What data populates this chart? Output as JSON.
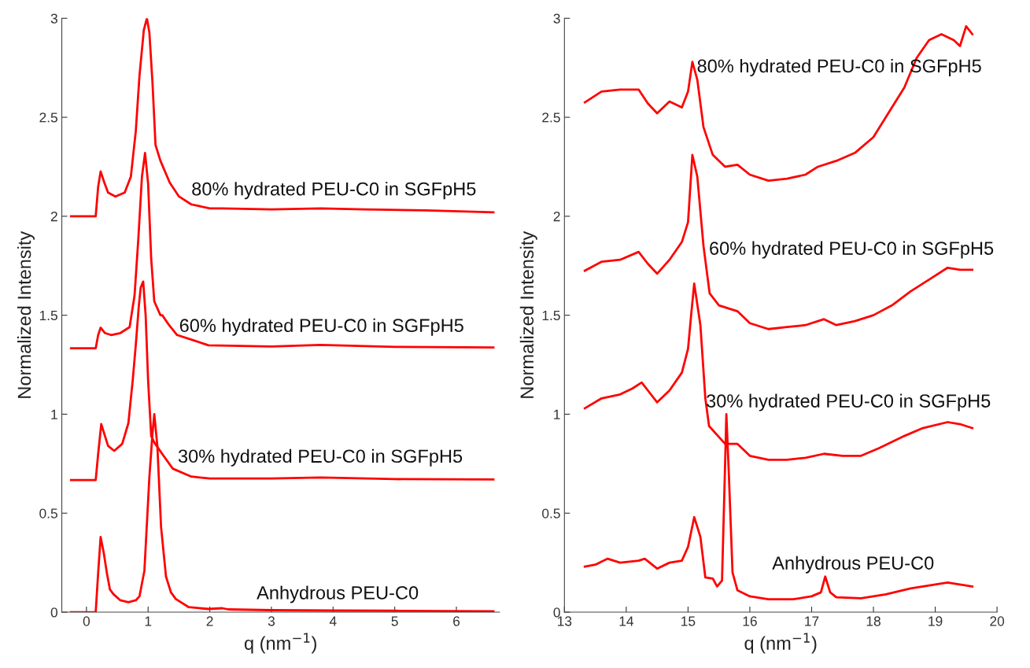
{
  "chart_data": [
    {
      "type": "line",
      "xlabel": "q (nm$^{−1}$)",
      "ylabel": "Normalized Intensity",
      "xlim": [
        -0.4,
        6.7
      ],
      "xticks": [
        0,
        1,
        2,
        3,
        4,
        5,
        6
      ],
      "ylim": [
        0,
        3
      ],
      "yticks": [
        0,
        0.5,
        1,
        1.5,
        2,
        2.5,
        3
      ],
      "grid": false,
      "marker": "none",
      "line_style": "solid",
      "series": [
        {
          "name": "Anhydrous PEU-C0",
          "color": "#ff0000",
          "x": [
            -0.25,
            0.15,
            0.19,
            0.23,
            0.28,
            0.33,
            0.38,
            0.44,
            0.55,
            0.68,
            0.8,
            0.86,
            0.94,
            1.02,
            1.07,
            1.1,
            1.15,
            1.21,
            1.29,
            1.37,
            1.45,
            1.66,
            1.98,
            2.2,
            2.3,
            3,
            4,
            5,
            6.6
          ],
          "values": [
            0,
            0,
            0.2,
            0.38,
            0.3,
            0.2,
            0.115,
            0.09,
            0.06,
            0.05,
            0.06,
            0.08,
            0.21,
            0.68,
            0.9,
            1.0,
            0.84,
            0.43,
            0.18,
            0.1,
            0.066,
            0.025,
            0.016,
            0.02,
            0.014,
            0.01,
            0.008,
            0.007,
            0.005
          ]
        },
        {
          "name": "30% hydrated PEU-C0 in SGFpH5",
          "color": "#ff0000",
          "x": [
            -0.25,
            0.15,
            0.19,
            0.24,
            0.29,
            0.35,
            0.45,
            0.58,
            0.68,
            0.75,
            0.8,
            0.85,
            0.88,
            0.92,
            0.96,
            1.0,
            1.05,
            1.1,
            1.25,
            1.4,
            1.7,
            2.0,
            3,
            3.8,
            5,
            6.6
          ],
          "values": [
            0.667,
            0.667,
            0.8,
            0.95,
            0.9,
            0.84,
            0.815,
            0.85,
            0.955,
            1.17,
            1.35,
            1.55,
            1.64,
            1.67,
            1.5,
            1.17,
            0.89,
            0.857,
            0.79,
            0.725,
            0.685,
            0.675,
            0.675,
            0.68,
            0.672,
            0.67
          ]
        },
        {
          "name": "60% hydrated PEU-C0 in SGFpH5",
          "color": "#ff0000",
          "x": [
            -0.25,
            0.15,
            0.19,
            0.23,
            0.3,
            0.4,
            0.55,
            0.7,
            0.78,
            0.84,
            0.9,
            0.95,
            1.0,
            1.05,
            1.1,
            1.2,
            1.23,
            1.34,
            1.47,
            1.77,
            1.98,
            3,
            3.8,
            5,
            6.6
          ],
          "values": [
            1.333,
            1.333,
            1.4,
            1.437,
            1.41,
            1.4,
            1.41,
            1.44,
            1.6,
            1.88,
            2.2,
            2.32,
            2.165,
            1.785,
            1.57,
            1.5,
            1.5,
            1.45,
            1.4,
            1.37,
            1.348,
            1.342,
            1.35,
            1.34,
            1.337
          ]
        },
        {
          "name": "80% hydrated PEU-C0 in SGFpH5",
          "color": "#ff0000",
          "x": [
            -0.25,
            0.15,
            0.19,
            0.23,
            0.29,
            0.35,
            0.47,
            0.62,
            0.72,
            0.8,
            0.86,
            0.93,
            0.98,
            1.02,
            1.07,
            1.12,
            1.2,
            1.35,
            1.5,
            1.7,
            2.0,
            2.2,
            3.0,
            3.8,
            4.5,
            5.5,
            6.6
          ],
          "values": [
            2.0,
            2.0,
            2.15,
            2.226,
            2.17,
            2.12,
            2.1,
            2.12,
            2.2,
            2.43,
            2.71,
            2.94,
            3.0,
            2.93,
            2.68,
            2.36,
            2.28,
            2.17,
            2.1,
            2.06,
            2.04,
            2.04,
            2.035,
            2.04,
            2.035,
            2.03,
            2.02
          ]
        }
      ]
    },
    {
      "type": "line",
      "xlabel": "q (nm$^{−1}$)",
      "ylabel": "Normalized Intensity",
      "xlim": [
        13,
        20
      ],
      "xticks": [
        13,
        14,
        15,
        16,
        17,
        18,
        19,
        20
      ],
      "ylim": [
        0,
        3
      ],
      "yticks": [
        0,
        0.5,
        1,
        1.5,
        2,
        2.5,
        3
      ],
      "grid": false,
      "marker": "none",
      "line_style": "solid",
      "series": [
        {
          "name": "Anhydrous PEU-C0",
          "color": "#ff0000",
          "x": [
            13.33,
            13.5,
            13.7,
            13.9,
            14.2,
            14.3,
            14.5,
            14.7,
            14.9,
            15.0,
            15.1,
            15.2,
            15.28,
            15.4,
            15.47,
            15.55,
            15.6,
            15.62,
            15.66,
            15.72,
            15.8,
            16.0,
            16.3,
            16.7,
            17.0,
            17.15,
            17.22,
            17.3,
            17.4,
            17.8,
            18.2,
            18.6,
            19.0,
            19.2,
            19.6
          ],
          "values": [
            0.23,
            0.24,
            0.27,
            0.25,
            0.26,
            0.27,
            0.22,
            0.25,
            0.26,
            0.33,
            0.48,
            0.38,
            0.175,
            0.17,
            0.13,
            0.16,
            0.75,
            1.0,
            0.7,
            0.2,
            0.11,
            0.08,
            0.065,
            0.065,
            0.08,
            0.1,
            0.18,
            0.1,
            0.075,
            0.07,
            0.09,
            0.12,
            0.14,
            0.15,
            0.13
          ]
        },
        {
          "name": "30% hydrated PEU-C0 in SGFpH5",
          "color": "#ff0000",
          "x": [
            13.33,
            13.6,
            13.9,
            14.1,
            14.25,
            14.35,
            14.5,
            14.7,
            14.9,
            15.0,
            15.05,
            15.1,
            15.2,
            15.28,
            15.34,
            15.6,
            15.8,
            16.0,
            16.3,
            16.6,
            16.9,
            17.2,
            17.5,
            17.8,
            18.1,
            18.5,
            18.8,
            19.2,
            19.4,
            19.6
          ],
          "values": [
            1.03,
            1.08,
            1.1,
            1.13,
            1.16,
            1.12,
            1.06,
            1.12,
            1.21,
            1.33,
            1.5,
            1.66,
            1.45,
            1.08,
            0.94,
            0.85,
            0.85,
            0.79,
            0.77,
            0.77,
            0.78,
            0.8,
            0.79,
            0.79,
            0.83,
            0.89,
            0.93,
            0.96,
            0.95,
            0.93
          ]
        },
        {
          "name": "60% hydrated PEU-C0 in SGFpH5",
          "color": "#ff0000",
          "x": [
            13.33,
            13.6,
            13.9,
            14.2,
            14.35,
            14.5,
            14.7,
            14.9,
            15.0,
            15.07,
            15.15,
            15.25,
            15.35,
            15.5,
            15.8,
            16.0,
            16.3,
            16.6,
            16.9,
            17.2,
            17.4,
            17.7,
            18.0,
            18.3,
            18.6,
            18.9,
            19.2,
            19.4,
            19.6
          ],
          "values": [
            1.725,
            1.77,
            1.78,
            1.82,
            1.76,
            1.71,
            1.78,
            1.87,
            1.97,
            2.31,
            2.2,
            1.85,
            1.61,
            1.55,
            1.52,
            1.46,
            1.43,
            1.44,
            1.45,
            1.48,
            1.45,
            1.47,
            1.5,
            1.55,
            1.62,
            1.68,
            1.74,
            1.73,
            1.73
          ]
        },
        {
          "name": "80% hydrated PEU-C0 in SGFpH5",
          "color": "#ff0000",
          "x": [
            13.33,
            13.6,
            13.9,
            14.2,
            14.35,
            14.5,
            14.7,
            14.9,
            15.0,
            15.07,
            15.15,
            15.25,
            15.4,
            15.6,
            15.8,
            16.0,
            16.3,
            16.6,
            16.9,
            17.1,
            17.4,
            17.7,
            18.0,
            18.2,
            18.5,
            18.7,
            18.9,
            19.1,
            19.3,
            19.4,
            19.5,
            19.6
          ],
          "values": [
            2.575,
            2.63,
            2.64,
            2.64,
            2.57,
            2.52,
            2.58,
            2.55,
            2.63,
            2.78,
            2.69,
            2.45,
            2.31,
            2.25,
            2.26,
            2.21,
            2.18,
            2.19,
            2.21,
            2.25,
            2.28,
            2.32,
            2.4,
            2.5,
            2.65,
            2.8,
            2.89,
            2.92,
            2.89,
            2.86,
            2.96,
            2.92
          ]
        }
      ]
    }
  ]
}
